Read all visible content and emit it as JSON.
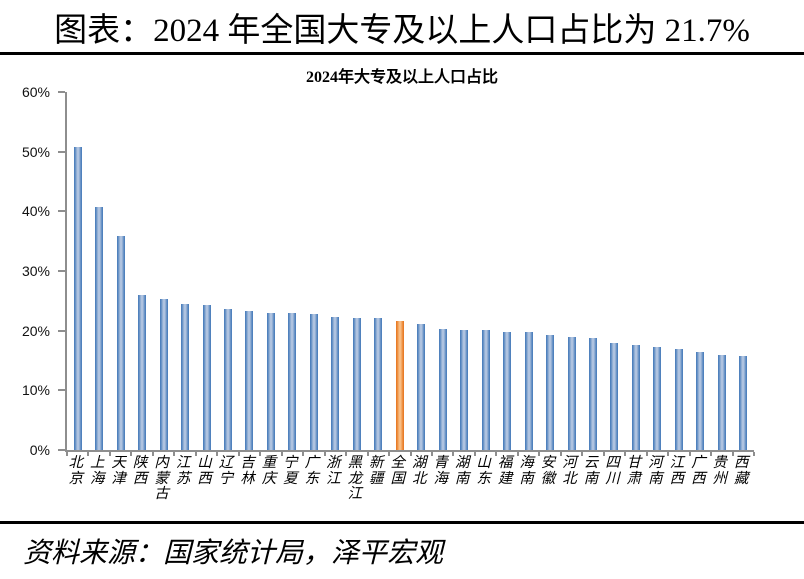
{
  "header": {
    "title": "图表：2024 年全国大专及以上人口占比为 21.7%"
  },
  "source": {
    "text": "资料来源：国家统计局，泽平宏观"
  },
  "chart_data": {
    "type": "bar",
    "title": "2024年大专及以上人口占比",
    "categories": [
      "北京",
      "上海",
      "天津",
      "陕西",
      "内蒙古",
      "江苏",
      "山西",
      "辽宁",
      "吉林",
      "重庆",
      "宁夏",
      "广东",
      "浙江",
      "黑龙江",
      "新疆",
      "全国",
      "湖北",
      "青海",
      "湖南",
      "山东",
      "福建",
      "海南",
      "安徽",
      "河北",
      "云南",
      "四川",
      "甘肃",
      "河南",
      "江西",
      "广西",
      "贵州",
      "西藏"
    ],
    "values": [
      50.8,
      40.8,
      35.9,
      26.0,
      25.3,
      24.4,
      24.3,
      23.7,
      23.3,
      23.0,
      22.9,
      22.8,
      22.3,
      22.2,
      22.2,
      21.7,
      21.1,
      20.2,
      20.1,
      20.1,
      19.7,
      19.7,
      19.3,
      18.9,
      18.8,
      18.0,
      17.6,
      17.3,
      16.9,
      16.4,
      16.0,
      15.8
    ],
    "highlight_category": "全国",
    "highlight_value": 21.7,
    "ylabel": "",
    "xlabel": "",
    "ylim": [
      0,
      60
    ],
    "yticks": [
      "0%",
      "10%",
      "20%",
      "30%",
      "40%",
      "50%",
      "60%"
    ],
    "ytick_values": [
      0,
      10,
      20,
      30,
      40,
      50,
      60
    ],
    "grid": "off",
    "legend": "none",
    "bar_color": "#4f81bd",
    "highlight_color": "#f79646",
    "axis_color": "#8e8e8e"
  }
}
